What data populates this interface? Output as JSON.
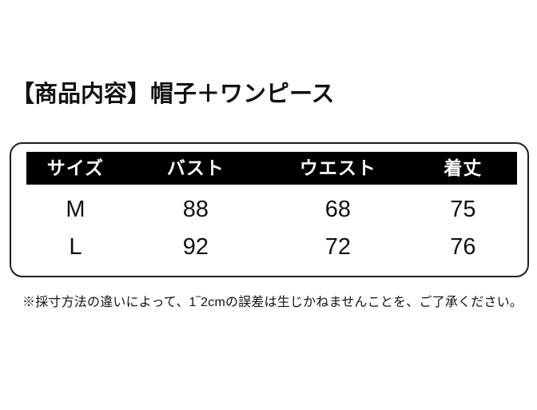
{
  "title": "【商品内容】帽子＋ワンピース",
  "size_table": {
    "columns": [
      "サイズ",
      "バスト",
      "ウエスト",
      "着丈"
    ],
    "rows": [
      [
        "M",
        "88",
        "68",
        "75"
      ],
      [
        "L",
        "92",
        "72",
        "76"
      ]
    ],
    "header_bg": "#000000",
    "header_text_color": "#ffffff",
    "border_color": "#1f1f1f"
  },
  "note": "※採寸方法の違いによって、1‾2cmの誤差は生じかねませんことを、ご了承ください。"
}
